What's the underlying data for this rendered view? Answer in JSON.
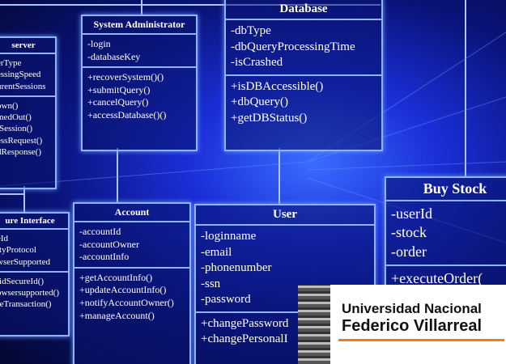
{
  "classes": [
    {
      "name": "server",
      "attributes": [
        "erType",
        "essingSpeed",
        "urentSessions"
      ],
      "methods": [
        "own()",
        "medOut()",
        "tSession()",
        "essRequest()",
        "dResponse()"
      ]
    },
    {
      "name": "System Administrator",
      "attributes": [
        "-login",
        "-databaseKey"
      ],
      "methods": [
        "+recoverSystem()()",
        "+submitQuery()",
        "+cancelQuery()",
        "+accessDatabase()()"
      ]
    },
    {
      "name": "Database",
      "attributes": [
        "-dbType",
        "-dbQueryProcessingTime",
        "-isCrashed"
      ],
      "methods": [
        "+isDBAccessible()",
        "+dbQuery()",
        "+getDBStatus()"
      ]
    },
    {
      "name": "Buy Stock",
      "attributes": [
        "-userId",
        "-stock",
        "-order"
      ],
      "methods": [
        "+executeOrder("
      ]
    },
    {
      "name": "ure Interface",
      "attributes": [
        "eId",
        "ttyProtocol",
        "wserSupported"
      ],
      "methods": [
        "lidSecureId()",
        "owsersupported()",
        "reTransaction()"
      ]
    },
    {
      "name": "Account",
      "attributes": [
        "-accountId",
        "-accountOwner",
        "-accountInfo"
      ],
      "methods": [
        "+getAccountInfo()",
        "+updateAccountInfo()",
        "+notifyAccountOwner()",
        "+manageAccount()"
      ]
    },
    {
      "name": "User",
      "attributes": [
        "-loginname",
        "-email",
        "-phonenumber",
        "-ssn",
        "-password"
      ],
      "methods": [
        "+changePassword",
        "+changePersonalI"
      ]
    }
  ],
  "logo": {
    "line1": "Universidad Nacional",
    "line2": "Federico Villarreal"
  }
}
